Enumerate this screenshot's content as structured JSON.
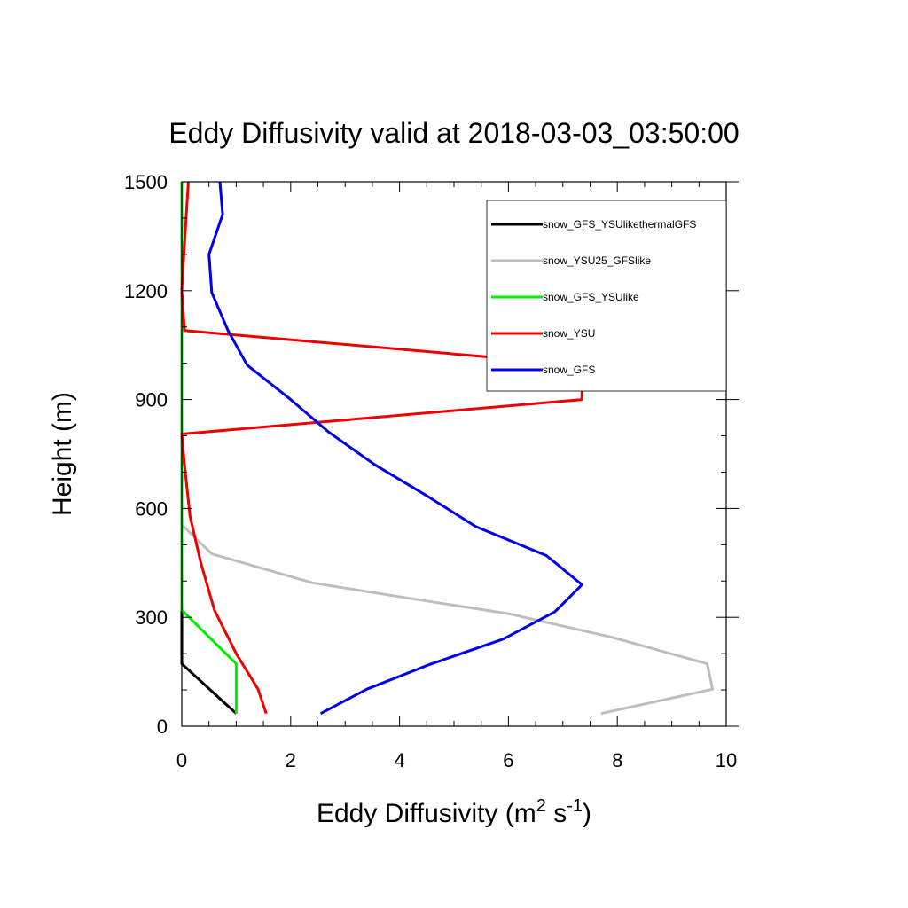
{
  "chart_data": {
    "type": "line",
    "title": "Eddy Diffusivity valid at 2018-03-03_03:50:00",
    "xlabel": {
      "base": "Eddy Diffusivity (m",
      "sup1": "2",
      "mid": " s",
      "sup2": "-1",
      "end": ")"
    },
    "ylabel": "Height (m)",
    "xlim": [
      0,
      10
    ],
    "ylim": [
      0,
      1500
    ],
    "x_ticks": [
      0,
      2,
      4,
      6,
      8,
      10
    ],
    "y_ticks": [
      0,
      300,
      600,
      900,
      1200,
      1500
    ],
    "x_minor_step": 0.5,
    "y_minor_step": 100,
    "grid": false,
    "legend_position": "top-right",
    "series": [
      {
        "name": "snow_GFS_YSUlikethermalGFS",
        "color": "#000000",
        "points": [
          [
            1.0,
            35
          ],
          [
            0.0,
            172
          ],
          [
            0.0,
            1500
          ]
        ]
      },
      {
        "name": "snow_YSU25_GFSlike",
        "color": "#bebebe",
        "points": [
          [
            7.7,
            35
          ],
          [
            9.75,
            102
          ],
          [
            9.65,
            172
          ],
          [
            7.9,
            245
          ],
          [
            6.0,
            310
          ],
          [
            4.5,
            345
          ],
          [
            2.4,
            395
          ],
          [
            0.55,
            475
          ],
          [
            0.0,
            555
          ],
          [
            0.0,
            1500
          ]
        ]
      },
      {
        "name": "snow_GFS_YSUlike",
        "color": "#00ee00",
        "points": [
          [
            1.0,
            35
          ],
          [
            1.0,
            172
          ],
          [
            0.0,
            320
          ],
          [
            0.0,
            1500
          ]
        ]
      },
      {
        "name": "snow_YSU",
        "color": "#ee0000",
        "points": [
          [
            1.55,
            35
          ],
          [
            1.4,
            102
          ],
          [
            1.0,
            200
          ],
          [
            0.6,
            320
          ],
          [
            0.35,
            450
          ],
          [
            0.15,
            580
          ],
          [
            0.05,
            720
          ],
          [
            0.0,
            805
          ],
          [
            7.35,
            900
          ],
          [
            7.35,
            995
          ],
          [
            0.05,
            1090
          ],
          [
            0.0,
            1200
          ],
          [
            0.05,
            1330
          ],
          [
            0.12,
            1500
          ]
        ]
      },
      {
        "name": "snow_GFS",
        "color": "#0000ee",
        "points": [
          [
            2.55,
            35
          ],
          [
            3.4,
            102
          ],
          [
            4.55,
            170
          ],
          [
            5.9,
            240
          ],
          [
            6.85,
            315
          ],
          [
            7.35,
            390
          ],
          [
            6.7,
            470
          ],
          [
            5.4,
            550
          ],
          [
            4.5,
            635
          ],
          [
            3.55,
            720
          ],
          [
            2.7,
            810
          ],
          [
            2.0,
            900
          ],
          [
            1.2,
            995
          ],
          [
            0.85,
            1090
          ],
          [
            0.55,
            1195
          ],
          [
            0.5,
            1300
          ],
          [
            0.75,
            1410
          ],
          [
            0.7,
            1500
          ]
        ]
      }
    ]
  }
}
